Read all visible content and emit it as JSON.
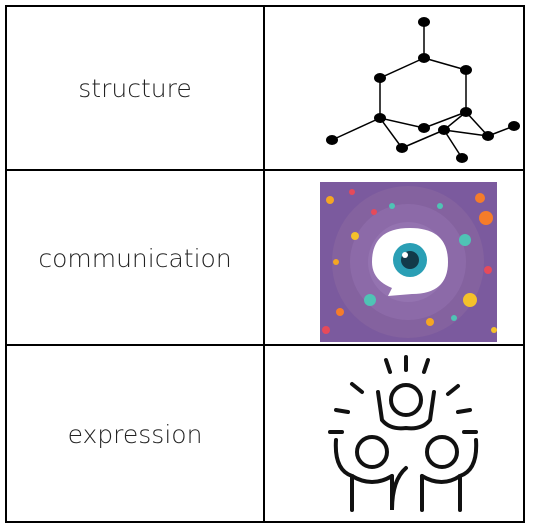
{
  "table": {
    "rows": [
      [
        "structure"
      ],
      [
        "communication"
      ],
      [
        "expression"
      ]
    ]
  }
}
